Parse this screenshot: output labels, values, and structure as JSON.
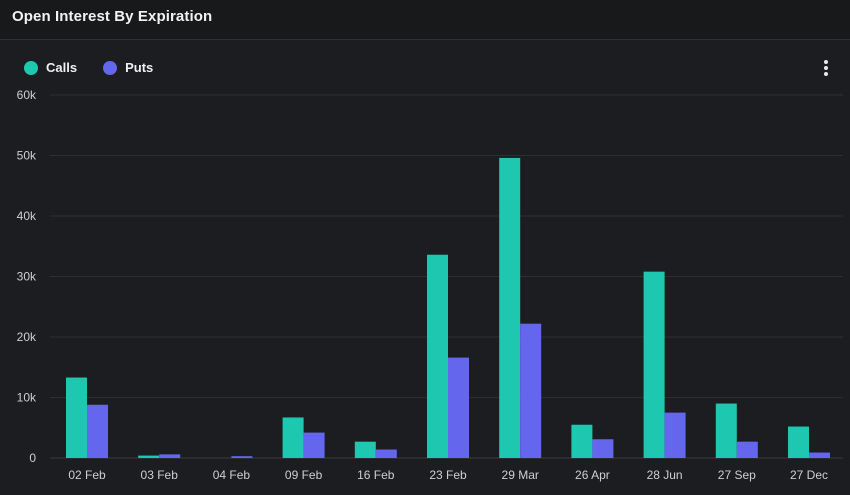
{
  "header": {
    "title": "Open Interest By Expiration"
  },
  "legend": {
    "items": [
      {
        "label": "Calls",
        "color": "#1ec8b0"
      },
      {
        "label": "Puts",
        "color": "#6466ee"
      }
    ]
  },
  "menu": {
    "icon": "more-vertical-icon"
  },
  "chart_data": {
    "type": "bar",
    "title": "Open Interest By Expiration",
    "xlabel": "",
    "ylabel": "",
    "categories": [
      "02 Feb",
      "03 Feb",
      "04 Feb",
      "09 Feb",
      "16 Feb",
      "23 Feb",
      "29 Mar",
      "26 Apr",
      "28 Jun",
      "27 Sep",
      "27 Dec"
    ],
    "series": [
      {
        "name": "Calls",
        "color": "#1ec8b0",
        "values": [
          13300,
          400,
          0,
          6700,
          2700,
          33600,
          49600,
          5500,
          30800,
          9000,
          5200
        ]
      },
      {
        "name": "Puts",
        "color": "#6466ee",
        "values": [
          8800,
          600,
          300,
          4200,
          1400,
          16600,
          22200,
          3100,
          7500,
          2700,
          900
        ]
      }
    ],
    "ylim": [
      0,
      60000
    ],
    "yticks": [
      0,
      10000,
      20000,
      30000,
      40000,
      50000,
      60000
    ],
    "ytick_labels": [
      "0",
      "10k",
      "20k",
      "30k",
      "40k",
      "50k",
      "60k"
    ],
    "grid": true,
    "legend_position": "top-left"
  }
}
